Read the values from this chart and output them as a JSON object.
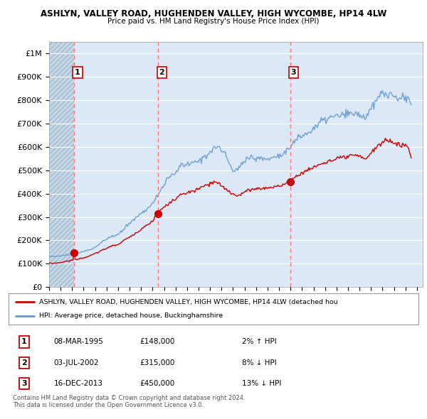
{
  "title1": "ASHLYN, VALLEY ROAD, HUGHENDEN VALLEY, HIGH WYCOMBE, HP14 4LW",
  "title2": "Price paid vs. HM Land Registry's House Price Index (HPI)",
  "background_color": "#ffffff",
  "plot_bg_color": "#dce8f5",
  "grid_color": "#ffffff",
  "hatch_color": "#b8c8d8",
  "hpi_color": "#6699cc",
  "price_color": "#cc0000",
  "vline_color": "#ff7777",
  "sales": [
    {
      "date_num": 1995.18,
      "price": 148000,
      "label": "1"
    },
    {
      "date_num": 2002.5,
      "price": 315000,
      "label": "2"
    },
    {
      "date_num": 2013.96,
      "price": 450000,
      "label": "3"
    }
  ],
  "legend_label_red": "ASHLYN, VALLEY ROAD, HUGHENDEN VALLEY, HIGH WYCOMBE, HP14 4LW (detached hou",
  "legend_label_blue": "HPI: Average price, detached house, Buckinghamshire",
  "table_rows": [
    [
      "1",
      "08-MAR-1995",
      "£148,000",
      "2% ↑ HPI"
    ],
    [
      "2",
      "03-JUL-2002",
      "£315,000",
      "8% ↓ HPI"
    ],
    [
      "3",
      "16-DEC-2013",
      "£450,000",
      "13% ↓ HPI"
    ]
  ],
  "footer": "Contains HM Land Registry data © Crown copyright and database right 2024.\nThis data is licensed under the Open Government Licence v3.0.",
  "ylim": [
    0,
    1050000
  ],
  "xlim_start": 1993.0,
  "xlim_end": 2025.5,
  "yticks": [
    0,
    100000,
    200000,
    300000,
    400000,
    500000,
    600000,
    700000,
    800000,
    900000,
    1000000
  ],
  "ytick_labels": [
    "£0",
    "£100K",
    "£200K",
    "£300K",
    "£400K",
    "£500K",
    "£600K",
    "£700K",
    "£800K",
    "£900K",
    "£1M"
  ]
}
